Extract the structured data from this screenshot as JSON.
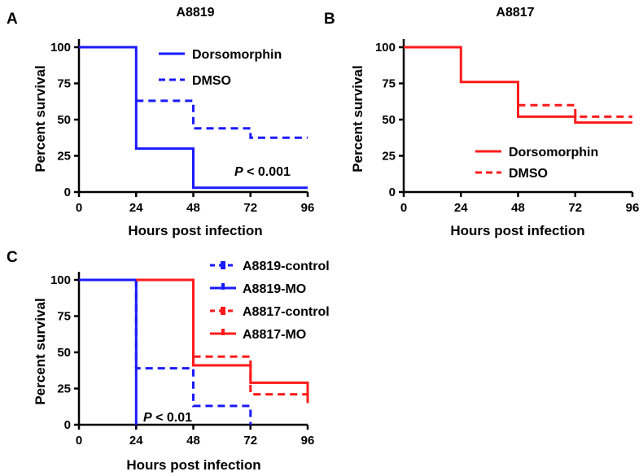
{
  "chart_data": [
    {
      "panel": "A",
      "type": "line",
      "title": "A8819",
      "xlabel": "Hours post infection",
      "ylabel": "Percent survival",
      "xlim": [
        0,
        96
      ],
      "ylim": [
        0,
        100
      ],
      "xticks": [
        0,
        24,
        48,
        72,
        96
      ],
      "yticks": [
        0,
        25,
        50,
        75,
        100
      ],
      "legend_position": "top-right",
      "annotation": {
        "italic": "P",
        "text": " < 0.001"
      },
      "series": [
        {
          "name": "Dorsomorphin",
          "color": "#1a1aff",
          "dash": "solid",
          "x": [
            0,
            24,
            24,
            48,
            48,
            96
          ],
          "y": [
            100,
            100,
            30,
            30,
            3,
            3
          ]
        },
        {
          "name": "DMSO",
          "color": "#1a1aff",
          "dash": "dashed",
          "x": [
            24,
            48,
            48,
            72,
            72,
            96
          ],
          "y": [
            63,
            63,
            44,
            44,
            37.5,
            37.5
          ]
        }
      ]
    },
    {
      "panel": "B",
      "type": "line",
      "title": "A8817",
      "xlabel": "Hours post infection",
      "ylabel": "Percent survival",
      "xlim": [
        0,
        96
      ],
      "ylim": [
        0,
        100
      ],
      "xticks": [
        0,
        24,
        48,
        72,
        96
      ],
      "yticks": [
        0,
        25,
        50,
        75,
        100
      ],
      "legend_position": "bottom-right",
      "series": [
        {
          "name": "Dorsomorphin",
          "color": "#ff1a1a",
          "dash": "solid",
          "x": [
            0,
            24,
            24,
            48,
            48,
            72,
            72,
            96
          ],
          "y": [
            100,
            100,
            76,
            76,
            52,
            52,
            48,
            48
          ]
        },
        {
          "name": "DMSO",
          "color": "#ff1a1a",
          "dash": "dashed",
          "x": [
            48,
            72,
            72,
            96
          ],
          "y": [
            60,
            60,
            52,
            52
          ]
        }
      ]
    },
    {
      "panel": "C",
      "type": "line",
      "xlabel": "Hours post infection",
      "ylabel": "Percent survival",
      "xlim": [
        0,
        96
      ],
      "ylim": [
        0,
        100
      ],
      "xticks": [
        0,
        24,
        48,
        72,
        96
      ],
      "yticks": [
        0,
        25,
        50,
        75,
        100
      ],
      "legend_position": "top-right (outside)",
      "annotation": {
        "italic": "P",
        "text": " < 0.01"
      },
      "series": [
        {
          "name": "A8819-control",
          "color": "#1a1aff",
          "dash": "dashed",
          "x": [
            24,
            24,
            48,
            48,
            72,
            72
          ],
          "y": [
            100,
            39,
            39,
            13,
            13,
            0
          ]
        },
        {
          "name": "A8819-MO",
          "color": "#1a1aff",
          "dash": "solid",
          "x": [
            0,
            24,
            24
          ],
          "y": [
            100,
            100,
            0
          ]
        },
        {
          "name": "A8817-control",
          "color": "#ff1a1a",
          "dash": "dashed",
          "x": [
            48,
            72,
            72,
            96,
            96
          ],
          "y": [
            47,
            47,
            21,
            21,
            15
          ]
        },
        {
          "name": "A8817-MO",
          "color": "#ff1a1a",
          "dash": "solid",
          "x": [
            24,
            48,
            48,
            72,
            72,
            96,
            96
          ],
          "y": [
            100,
            100,
            41,
            41,
            29,
            29,
            15
          ]
        }
      ]
    }
  ]
}
